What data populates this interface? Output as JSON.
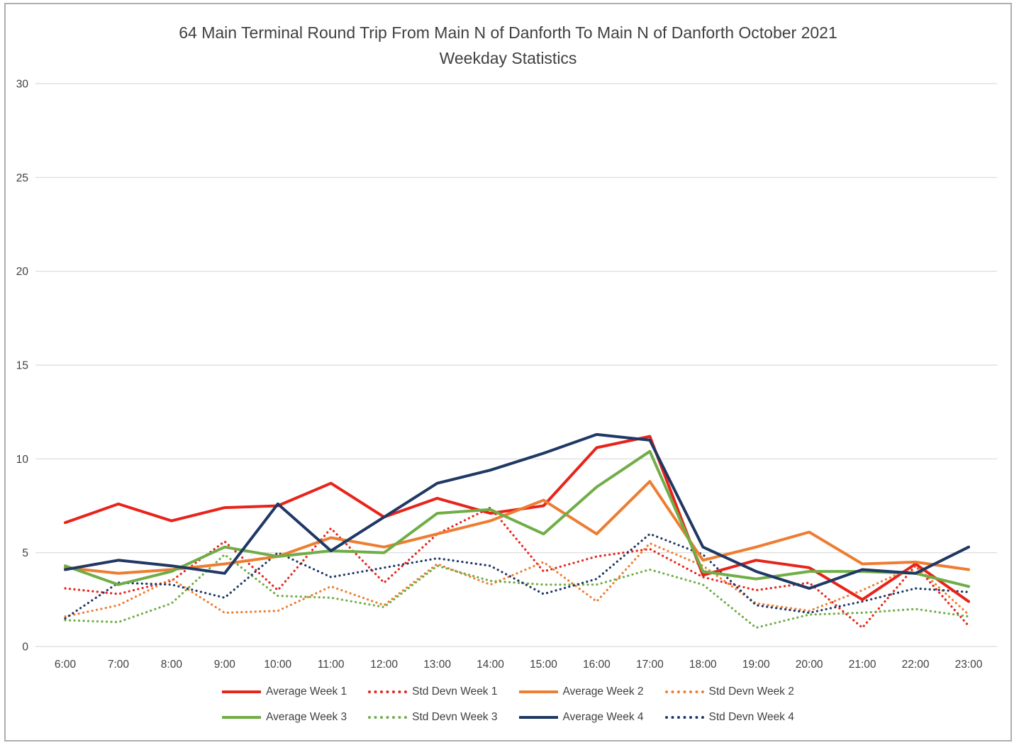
{
  "chart_data": {
    "type": "line",
    "title": "64 Main Terminal Round Trip From Main N of Danforth To Main N of Danforth October 2021",
    "subtitle": "Weekday Statistics",
    "x": [
      "6:00",
      "7:00",
      "8:00",
      "9:00",
      "10:00",
      "11:00",
      "12:00",
      "13:00",
      "14:00",
      "15:00",
      "16:00",
      "17:00",
      "18:00",
      "19:00",
      "20:00",
      "21:00",
      "22:00",
      "23:00"
    ],
    "ylim": [
      0,
      30
    ],
    "yticks": [
      0,
      5,
      10,
      15,
      20,
      25,
      30
    ],
    "grid": true,
    "legend_position": "bottom",
    "colors": {
      "week1": "#e8231a",
      "week2": "#ed7d31",
      "week3": "#70ad47",
      "week4": "#1f3864"
    },
    "series": [
      {
        "name": "Average Week 1",
        "style": "solid",
        "color": "#e8231a",
        "values": [
          6.6,
          7.6,
          6.7,
          7.4,
          7.5,
          8.7,
          6.9,
          7.9,
          7.1,
          7.5,
          10.6,
          11.2,
          3.8,
          4.6,
          4.2,
          2.5,
          4.4,
          2.4
        ]
      },
      {
        "name": "Std Devn Week 1",
        "style": "dotted",
        "color": "#e8231a",
        "values": [
          3.1,
          2.8,
          3.5,
          5.6,
          3.0,
          6.3,
          3.4,
          6.0,
          7.4,
          4.0,
          4.8,
          5.2,
          3.7,
          3.0,
          3.4,
          1.0,
          4.3,
          1.1
        ]
      },
      {
        "name": "Average Week 2",
        "style": "solid",
        "color": "#ed7d31",
        "values": [
          4.2,
          3.9,
          4.1,
          4.4,
          4.8,
          5.8,
          5.3,
          6.0,
          6.7,
          7.8,
          6.0,
          8.8,
          4.6,
          5.3,
          6.1,
          4.4,
          4.5,
          4.1
        ]
      },
      {
        "name": "Std Devn Week 2",
        "style": "dotted",
        "color": "#ed7d31",
        "values": [
          1.6,
          2.2,
          3.6,
          1.8,
          1.9,
          3.2,
          2.2,
          4.4,
          3.3,
          4.5,
          2.4,
          5.5,
          4.3,
          2.3,
          1.9,
          3.0,
          4.3,
          1.7
        ]
      },
      {
        "name": "Average Week 3",
        "style": "solid",
        "color": "#70ad47",
        "values": [
          4.3,
          3.3,
          4.0,
          5.3,
          4.8,
          5.1,
          5.0,
          7.1,
          7.3,
          6.0,
          8.5,
          10.4,
          4.0,
          3.6,
          4.0,
          4.0,
          3.9,
          3.2
        ]
      },
      {
        "name": "Std Devn Week 3",
        "style": "dotted",
        "color": "#70ad47",
        "values": [
          1.4,
          1.3,
          2.3,
          4.9,
          2.7,
          2.6,
          2.1,
          4.3,
          3.5,
          3.3,
          3.3,
          4.1,
          3.3,
          1.0,
          1.7,
          1.8,
          2.0,
          1.6
        ]
      },
      {
        "name": "Average Week 4",
        "style": "solid",
        "color": "#1f3864",
        "values": [
          4.1,
          4.6,
          4.3,
          3.9,
          7.6,
          5.1,
          6.9,
          8.7,
          9.4,
          10.3,
          11.3,
          11.0,
          5.3,
          4.0,
          3.1,
          4.1,
          3.9,
          5.3
        ]
      },
      {
        "name": "Std Devn Week 4",
        "style": "dotted",
        "color": "#1f3864",
        "values": [
          1.5,
          3.4,
          3.3,
          2.6,
          5.0,
          3.7,
          4.2,
          4.7,
          4.3,
          2.8,
          3.6,
          6.0,
          4.9,
          2.2,
          1.8,
          2.4,
          3.1,
          2.9
        ]
      }
    ]
  }
}
